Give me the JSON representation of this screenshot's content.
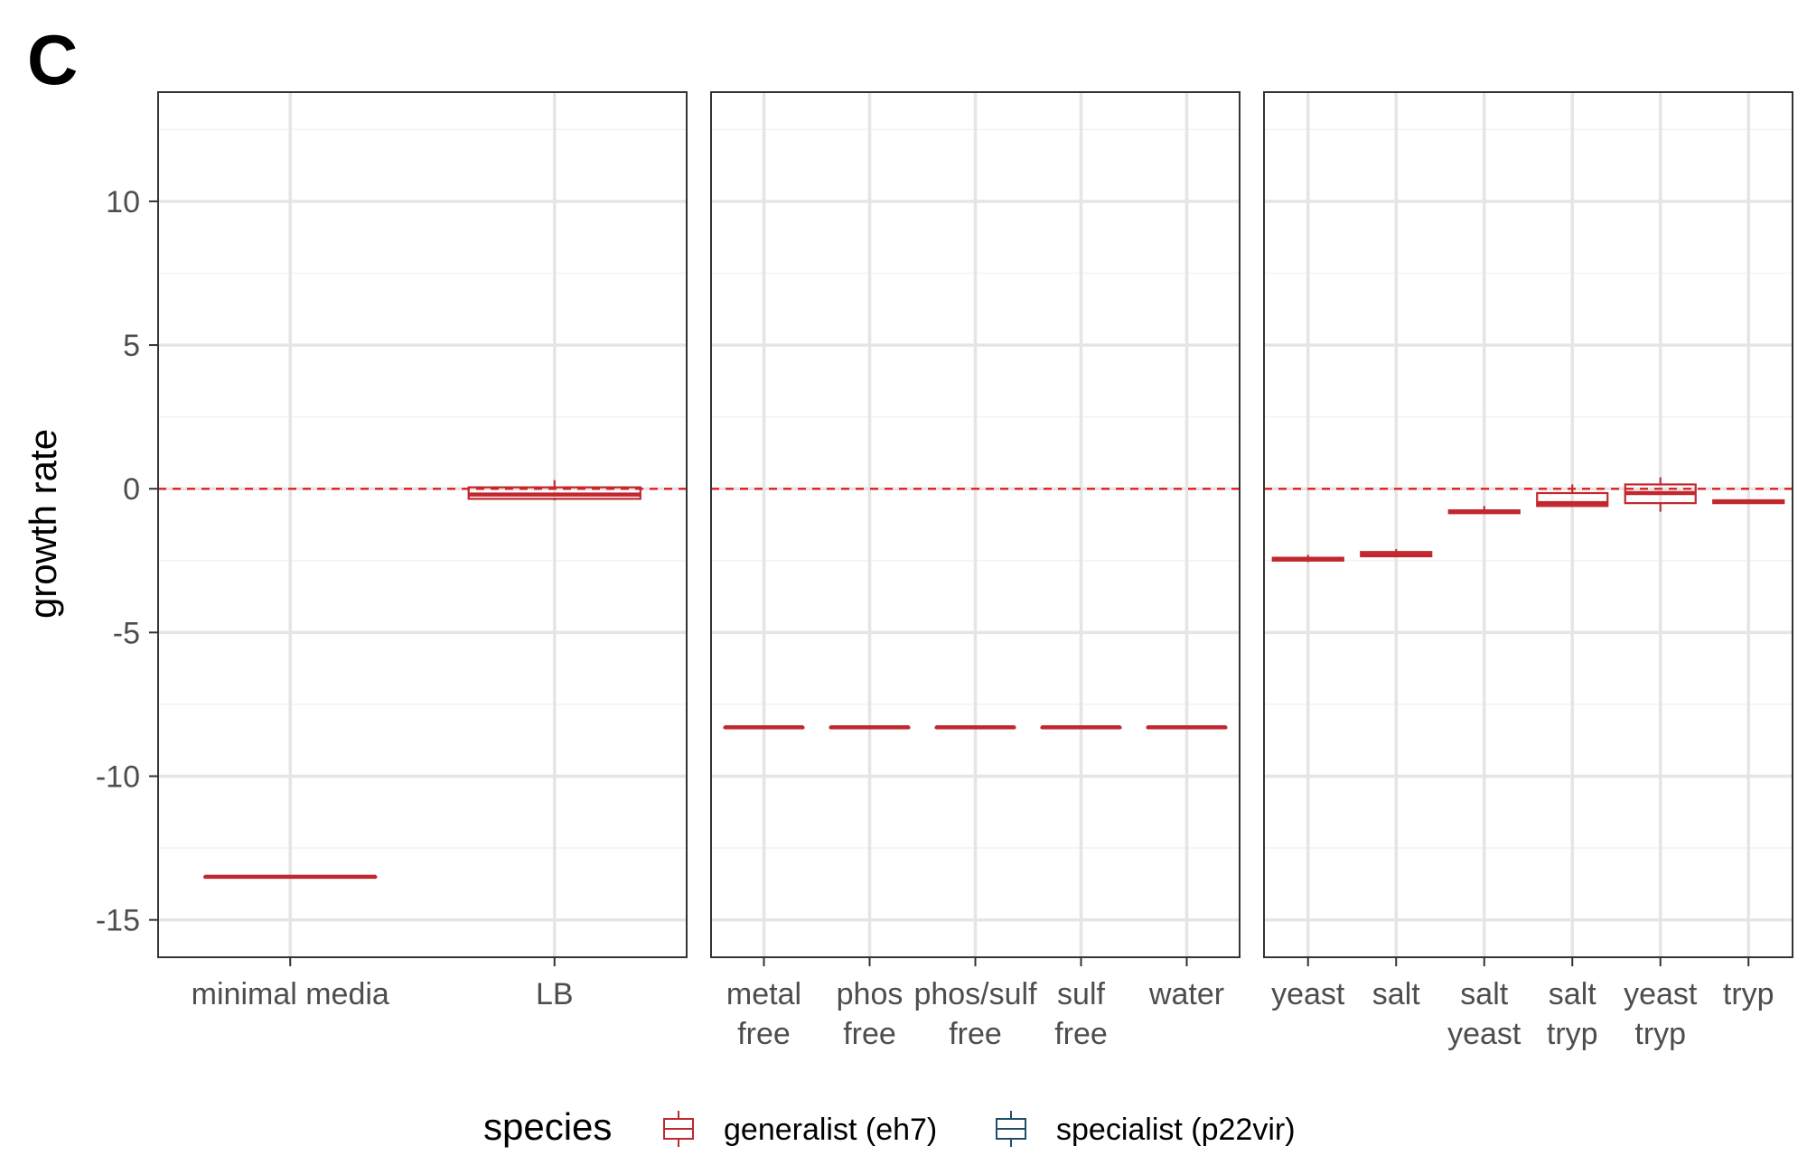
{
  "chart_data": {
    "type": "box",
    "panel_label": "C",
    "ylabel": "growth rate",
    "ylim": [
      -16.3,
      13.8
    ],
    "yticks": [
      10,
      5,
      0,
      -5,
      -10,
      -15
    ],
    "ytick_labels": [
      "10",
      "5",
      "0",
      "-5",
      "-10",
      "-15"
    ],
    "reference_line": {
      "y": 0,
      "style": "dashed",
      "color": "#e41a1c"
    },
    "grid": true,
    "facets": [
      {
        "categories": [
          {
            "label": [
              "minimal media"
            ],
            "generalist": {
              "min": -13.5,
              "q1": -13.5,
              "median": -13.5,
              "q3": -13.5,
              "max": -13.5
            }
          },
          {
            "label": [
              "LB"
            ],
            "generalist": {
              "min": -0.4,
              "q1": -0.35,
              "median": -0.2,
              "q3": 0.05,
              "max": 0.3
            }
          }
        ]
      },
      {
        "categories": [
          {
            "label": [
              "metal",
              "free"
            ],
            "generalist": {
              "min": -8.3,
              "q1": -8.3,
              "median": -8.3,
              "q3": -8.3,
              "max": -8.3
            }
          },
          {
            "label": [
              "phos",
              "free"
            ],
            "generalist": {
              "min": -8.3,
              "q1": -8.3,
              "median": -8.3,
              "q3": -8.3,
              "max": -8.3
            }
          },
          {
            "label": [
              "phos/sulf",
              "free"
            ],
            "generalist": {
              "min": -8.3,
              "q1": -8.3,
              "median": -8.3,
              "q3": -8.3,
              "max": -8.3
            }
          },
          {
            "label": [
              "sulf",
              "free"
            ],
            "generalist": {
              "min": -8.3,
              "q1": -8.3,
              "median": -8.3,
              "q3": -8.3,
              "max": -8.3
            }
          },
          {
            "label": [
              "water"
            ],
            "generalist": {
              "min": -8.3,
              "q1": -8.3,
              "median": -8.3,
              "q3": -8.3,
              "max": -8.3
            }
          }
        ]
      },
      {
        "categories": [
          {
            "label": [
              "yeast"
            ],
            "generalist": {
              "min": -2.55,
              "q1": -2.5,
              "median": -2.45,
              "q3": -2.4,
              "max": -2.3
            }
          },
          {
            "label": [
              "salt"
            ],
            "generalist": {
              "min": -2.35,
              "q1": -2.35,
              "median": -2.3,
              "q3": -2.2,
              "max": -2.1
            }
          },
          {
            "label": [
              "salt",
              "yeast"
            ],
            "generalist": {
              "min": -0.85,
              "q1": -0.85,
              "median": -0.8,
              "q3": -0.75,
              "max": -0.6
            }
          },
          {
            "label": [
              "salt",
              "tryp"
            ],
            "generalist": {
              "min": -0.6,
              "q1": -0.6,
              "median": -0.5,
              "q3": -0.15,
              "max": 0.15
            }
          },
          {
            "label": [
              "yeast",
              "tryp"
            ],
            "generalist": {
              "min": -0.8,
              "q1": -0.5,
              "median": -0.15,
              "q3": 0.15,
              "max": 0.4
            }
          },
          {
            "label": [
              "tryp"
            ],
            "generalist": {
              "min": -0.5,
              "q1": -0.5,
              "median": -0.45,
              "q3": -0.4,
              "max": -0.4
            }
          }
        ]
      }
    ],
    "legend": {
      "title": "species",
      "position": "bottom",
      "entries": [
        {
          "key": "generalist",
          "label": "generalist (eh7)",
          "color": "#c1272d"
        },
        {
          "key": "specialist",
          "label": "specialist (p22vir)",
          "color": "#1f4e6b"
        }
      ]
    }
  }
}
